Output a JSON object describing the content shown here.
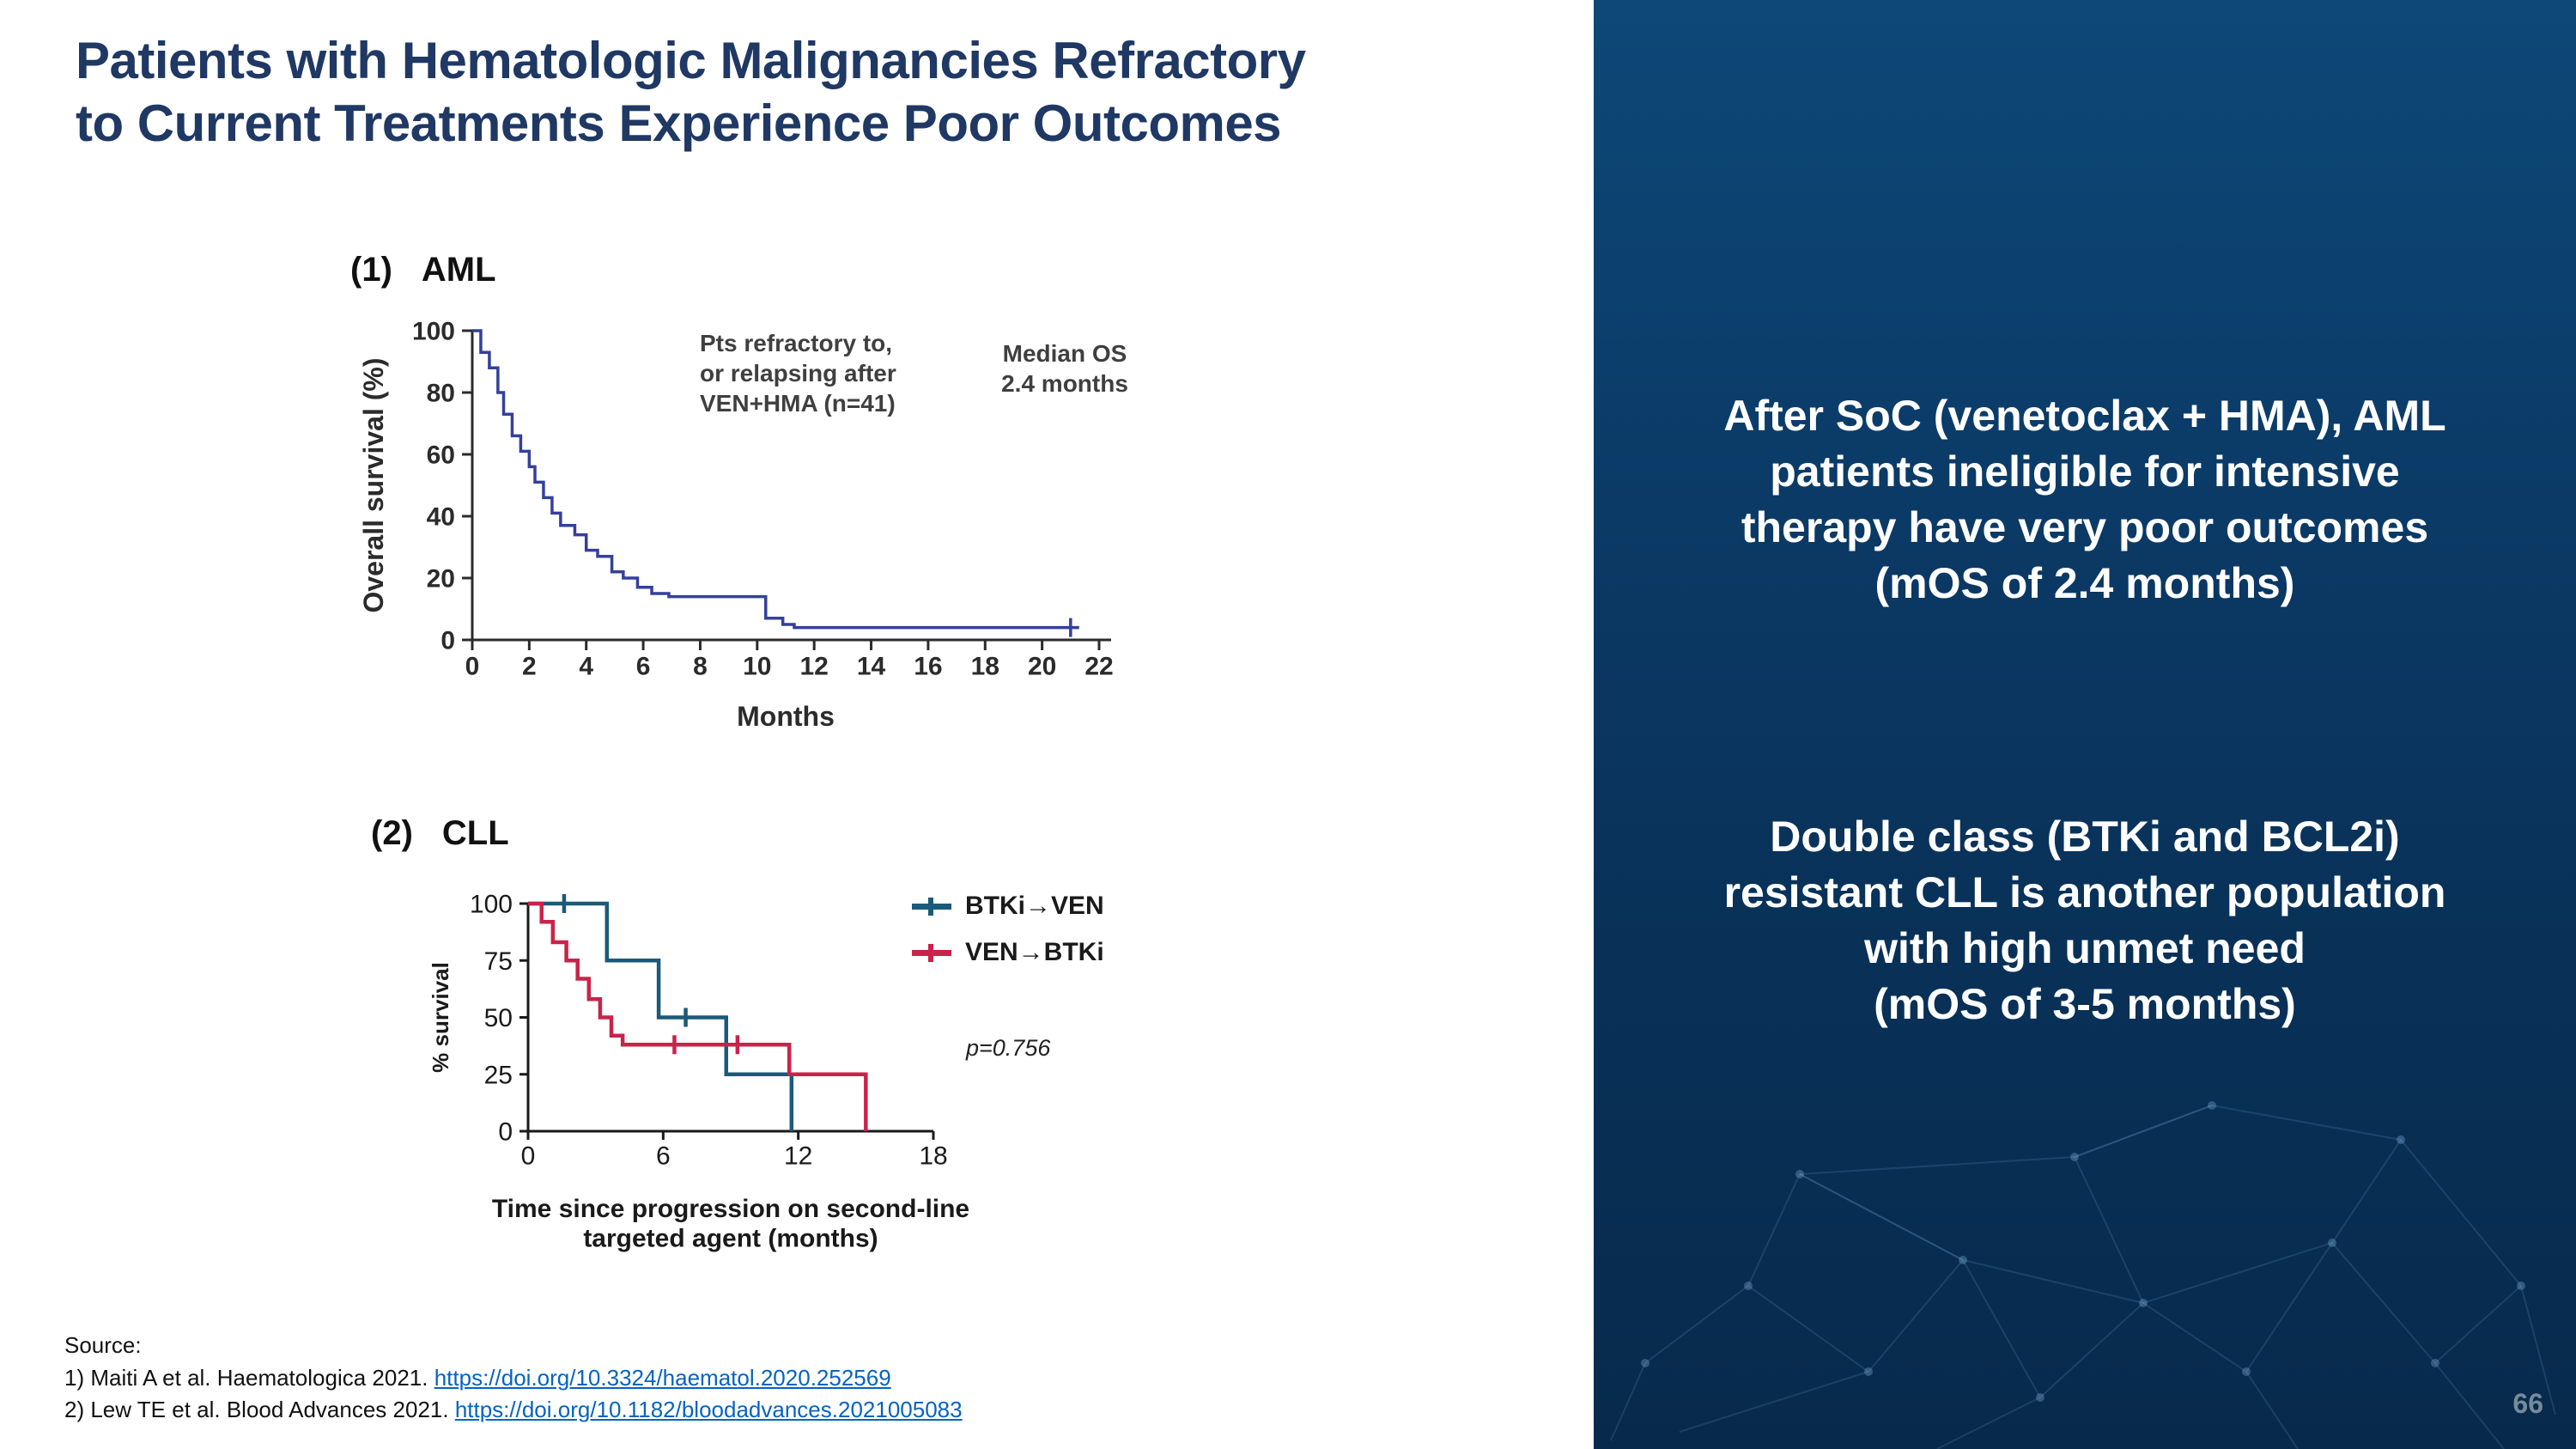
{
  "slide": {
    "title": "Patients with Hematologic Malignancies Refractory\nto Current Treatments Experience Poor Outcomes",
    "page_number": "66"
  },
  "right_panel": {
    "callout_aml": "After SoC (venetoclax + HMA), AML\npatients ineligible for intensive\ntherapy have very poor outcomes\n(mOS of 2.4 months)",
    "callout_cll": "Double class (BTKi and BCL2i)\nresistant CLL is another population\nwith high unmet need\n(mOS of 3-5 months)"
  },
  "source": {
    "label": "Source:",
    "items": [
      {
        "text": "1) Maiti A et al. Haematologica 2021. ",
        "link": "https://doi.org/10.3324/haematol.2020.252569"
      },
      {
        "text": "2) Lew TE et al. Blood Advances 2021. ",
        "link": "https://doi.org/10.1182/bloodadvances.2021005083"
      }
    ]
  },
  "chart_data": [
    {
      "type": "line",
      "subtype": "kaplan-meier-step",
      "index_label": "(1)",
      "title": "AML",
      "xlabel": "Months",
      "ylabel": "Overall survival (%)",
      "xlim": [
        0,
        22
      ],
      "ylim": [
        0,
        100
      ],
      "xticks": [
        0,
        2,
        4,
        6,
        8,
        10,
        12,
        14,
        16,
        18,
        20,
        22
      ],
      "yticks": [
        0,
        20,
        40,
        60,
        80,
        100
      ],
      "grid": false,
      "annotations": [
        {
          "text": "Pts refractory to,\nor relapsing after\nVEN+HMA (n=41)"
        },
        {
          "text": "Median OS\n2.4 months"
        }
      ],
      "series": [
        {
          "name": "Pts refractory to, or relapsing after VEN+HMA (n=41)",
          "color": "#34409b",
          "steps": [
            [
              0,
              100
            ],
            [
              0.3,
              93
            ],
            [
              0.6,
              88
            ],
            [
              0.9,
              80
            ],
            [
              1.1,
              73
            ],
            [
              1.4,
              66
            ],
            [
              1.7,
              61
            ],
            [
              2.0,
              56
            ],
            [
              2.2,
              51
            ],
            [
              2.5,
              46
            ],
            [
              2.8,
              41
            ],
            [
              3.1,
              37
            ],
            [
              3.6,
              34
            ],
            [
              4.0,
              29
            ],
            [
              4.4,
              27
            ],
            [
              4.9,
              22
            ],
            [
              5.3,
              20
            ],
            [
              5.8,
              17
            ],
            [
              6.3,
              15
            ],
            [
              6.9,
              14
            ],
            [
              10.3,
              7
            ],
            [
              10.9,
              5
            ],
            [
              11.3,
              4
            ]
          ],
          "censors": [
            [
              21.0,
              4
            ]
          ],
          "end": 21.3
        }
      ]
    },
    {
      "type": "line",
      "subtype": "kaplan-meier-step",
      "index_label": "(2)",
      "title": "CLL",
      "xlabel": "Time since progression on second-line\ntargeted agent (months)",
      "ylabel": "% survival",
      "xlim": [
        0,
        18
      ],
      "ylim": [
        0,
        100
      ],
      "xticks": [
        0,
        6,
        12,
        18
      ],
      "yticks": [
        0,
        25,
        50,
        75,
        100
      ],
      "grid": false,
      "p_value": "p=0.756",
      "legend_position": "right",
      "series": [
        {
          "name": "BTKi→VEN",
          "color": "#1b5a78",
          "steps": [
            [
              0,
              100
            ],
            [
              3.5,
              75
            ],
            [
              5.8,
              50
            ],
            [
              8.8,
              25
            ],
            [
              11.7,
              0
            ]
          ],
          "censors": [
            [
              1.6,
              100
            ],
            [
              7.0,
              50
            ]
          ],
          "end": null
        },
        {
          "name": "VEN→BTKi",
          "color": "#c9234a",
          "steps": [
            [
              0,
              100
            ],
            [
              0.6,
              92
            ],
            [
              1.1,
              83
            ],
            [
              1.7,
              75
            ],
            [
              2.2,
              67
            ],
            [
              2.7,
              58
            ],
            [
              3.2,
              50
            ],
            [
              3.7,
              42
            ],
            [
              4.2,
              38
            ],
            [
              11.6,
              25
            ],
            [
              15.0,
              0
            ]
          ],
          "censors": [
            [
              6.5,
              38
            ],
            [
              9.3,
              38
            ]
          ],
          "end": null
        }
      ]
    }
  ]
}
